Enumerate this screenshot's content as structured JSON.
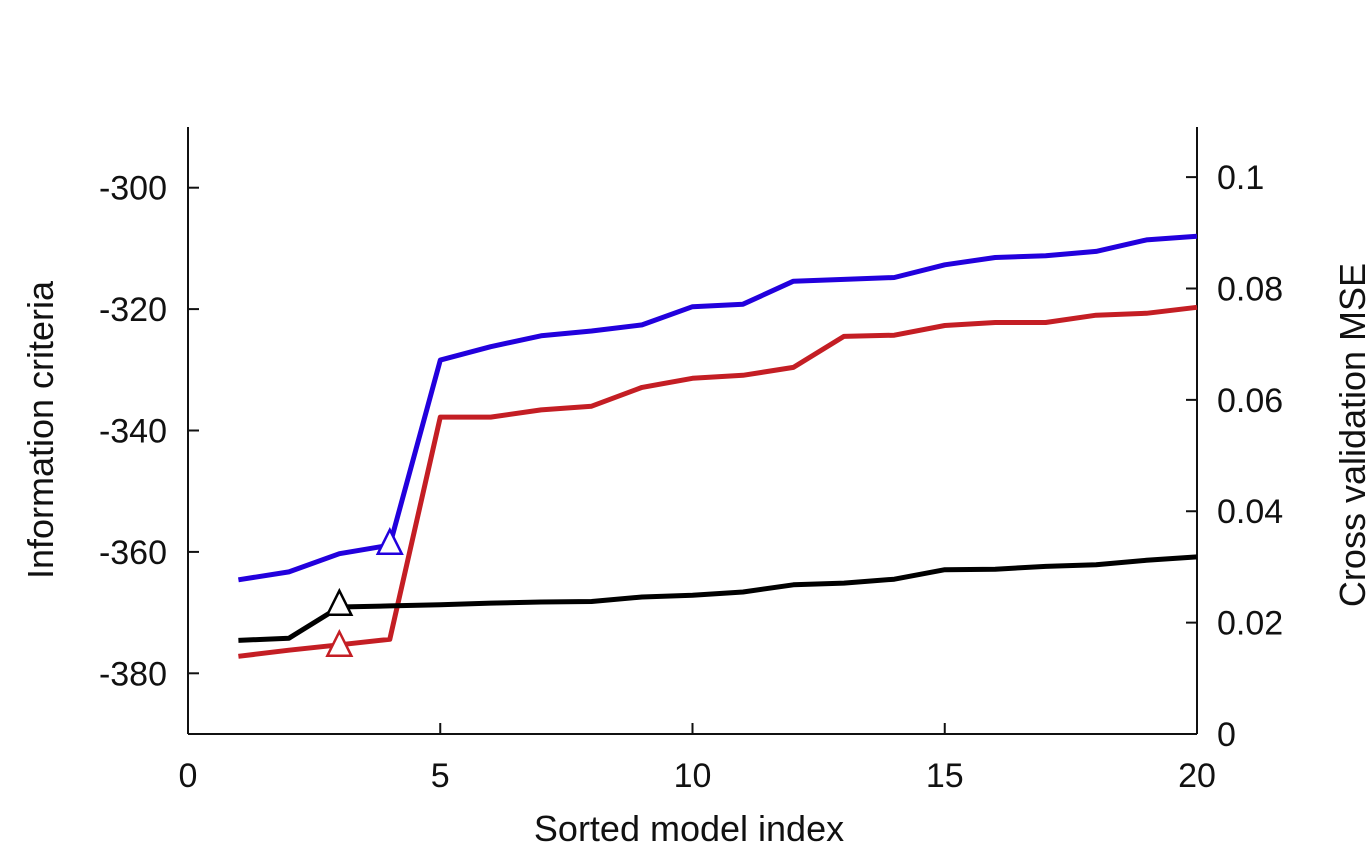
{
  "chart_data": {
    "type": "line",
    "title": "",
    "xlabel": "Sorted model index",
    "ylabel": "Information criteria",
    "y2label": "Cross validation MSE",
    "xlim": [
      0,
      20
    ],
    "ylim": [
      -390,
      -290
    ],
    "y2lim": [
      0,
      0.109
    ],
    "x_ticks": [
      0,
      5,
      10,
      15,
      20
    ],
    "y_ticks": [
      -300,
      -320,
      -340,
      -360,
      -380
    ],
    "y2_ticks": [
      0,
      0.02,
      0.04,
      0.06,
      0.08,
      0.1
    ],
    "y2_tick_labels": [
      "0",
      "0.02",
      "0.04",
      "0.06",
      "0.08",
      "0.1"
    ],
    "grid": false,
    "legend": "none",
    "x": [
      1,
      2,
      3,
      4,
      5,
      6,
      7,
      8,
      9,
      10,
      11,
      12,
      13,
      14,
      15,
      16,
      17,
      18,
      19,
      20
    ],
    "series": [
      {
        "color": "#2200dd",
        "axis": "left",
        "values": [
          -364.6,
          -363.3,
          -360.3,
          -358.9,
          -328.4,
          -326.2,
          -324.4,
          -323.6,
          -322.6,
          -319.6,
          -319.2,
          -315.4,
          -315.1,
          -314.8,
          -312.7,
          -311.5,
          -311.2,
          -310.5,
          -308.6,
          -308.0
        ],
        "marker": {
          "x": 4,
          "y": -358.5
        }
      },
      {
        "color": "#c41e24",
        "axis": "left",
        "values": [
          -377.2,
          -376.2,
          -375.3,
          -374.4,
          -337.8,
          -337.8,
          -336.6,
          -336.0,
          -332.9,
          -331.4,
          -330.9,
          -329.6,
          -324.5,
          -324.3,
          -322.7,
          -322.2,
          -322.2,
          -321.0,
          -320.7,
          -319.7
        ],
        "marker": {
          "x": 3,
          "y": -375.3
        }
      },
      {
        "color": "#000000",
        "axis": "right",
        "values": [
          0.0168,
          0.0172,
          0.0228,
          0.023,
          0.0232,
          0.0235,
          0.0237,
          0.0238,
          0.0246,
          0.0249,
          0.0255,
          0.0268,
          0.0271,
          0.0278,
          0.0295,
          0.0296,
          0.0301,
          0.0304,
          0.0312,
          0.0318
        ],
        "marker": {
          "x": 3,
          "y": 0.0234
        }
      }
    ]
  }
}
